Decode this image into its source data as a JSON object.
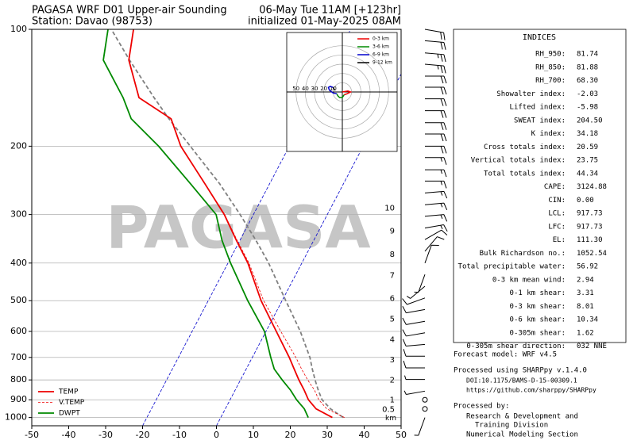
{
  "chart_data": {
    "type": "skewt",
    "title": "PAGASA WRF D01 Upper-air Sounding",
    "subtitle": "Station: Davao (98753)",
    "valid_time": "06-May Tue 11AM [+123hr]",
    "init_time": "initialized 01-May-2025 08AM",
    "watermark": "PAGASA",
    "log_y": true,
    "xlim": [
      -50,
      50
    ],
    "ylim": [
      1050,
      100
    ],
    "xticks": [
      -50,
      -40,
      -30,
      -20,
      -10,
      0,
      10,
      20,
      30,
      40,
      50
    ],
    "yticks": [
      100,
      200,
      300,
      400,
      500,
      600,
      700,
      800,
      900,
      1000
    ],
    "grid": true,
    "legend": "lower left",
    "isotherms": {
      "color": "#0000cc",
      "values": [
        -20,
        0
      ]
    },
    "pressure": [
      1000,
      950,
      900,
      850,
      800,
      750,
      700,
      600,
      500,
      400,
      350,
      300,
      250,
      200,
      170,
      150,
      120,
      100
    ],
    "series": [
      {
        "name": "TEMP",
        "color": "#ee0000",
        "linestyle": "solid",
        "values": [
          30.2,
          24.6,
          21.2,
          18.7,
          15.8,
          13.0,
          10.0,
          2.8,
          -5.7,
          -14.6,
          -20.9,
          -27.9,
          -37.5,
          -49.4,
          -55.9,
          -67.6,
          -75.7,
          -78.8
        ]
      },
      {
        "name": "V.TEMP",
        "color": "#ee0000",
        "linestyle": "dashed",
        "values": [
          33.5,
          27.5,
          24.0,
          21.5,
          18.2,
          15.0,
          11.8,
          4.0,
          -5.0,
          -14.3,
          -20.7,
          -27.8,
          -37.5,
          -49.4,
          -55.9,
          -67.6,
          -75.7,
          -78.8
        ]
      },
      {
        "name": "DWPT",
        "color": "#008a00",
        "linestyle": "solid",
        "values": [
          23.7,
          21.4,
          18.0,
          15.0,
          11.3,
          7.6,
          5.0,
          -0.4,
          -9.3,
          -19.3,
          -24.8,
          -30.1,
          -41.4,
          -55.4,
          -66.7,
          -71.9,
          -82.6,
          -85.7
        ]
      }
    ],
    "parcel": {
      "color": "#808080",
      "values": [
        33.2,
        28.5,
        24.9,
        22.5,
        20.2,
        17.9,
        15.6,
        9.3,
        1.0,
        -9.0,
        -15.6,
        -23.6,
        -33.5,
        -46.8,
        -56.5,
        -63.5,
        -75.5,
        -84.8
      ]
    },
    "heights": {
      "unit": "km",
      "values": [
        10,
        9,
        8,
        7,
        6,
        5,
        4,
        3,
        2,
        1,
        0.5
      ],
      "pressure": [
        289,
        331,
        380,
        431,
        494,
        558,
        631,
        710,
        802,
        902,
        954
      ]
    },
    "wind": {
      "pressure": [
        100,
        107,
        115,
        123,
        132,
        141,
        151,
        162,
        174,
        186,
        200,
        214,
        230,
        246,
        264,
        283,
        303,
        325,
        348,
        373,
        400,
        428,
        459,
        492,
        527,
        565,
        605,
        648,
        695,
        745,
        798,
        855,
        900,
        950,
        1000
      ],
      "direction": [
        100,
        95,
        95,
        95,
        90,
        90,
        90,
        90,
        90,
        90,
        90,
        90,
        90,
        90,
        85,
        85,
        85,
        80,
        60,
        40,
        20,
        200,
        230,
        250,
        260,
        260,
        260,
        265,
        270,
        270,
        270,
        260,
        0,
        0,
        200
      ],
      "speed": [
        20,
        20,
        25,
        25,
        20,
        20,
        20,
        20,
        20,
        20,
        20,
        15,
        15,
        15,
        15,
        15,
        15,
        15,
        10,
        10,
        10,
        5,
        5,
        10,
        10,
        10,
        10,
        10,
        10,
        10,
        5,
        5,
        0,
        0,
        5
      ]
    },
    "hodograph": {
      "lim": 60,
      "rings": [
        50,
        40,
        30,
        20,
        10
      ],
      "segments": [
        {
          "name": "0-3 km",
          "color": "#ee0000",
          "u": [
            0,
            6,
            9,
            5,
            2
          ],
          "v": [
            0,
            1,
            0,
            -2,
            -3
          ]
        },
        {
          "name": "3-6 km",
          "color": "#008a00",
          "u": [
            2,
            0,
            -3,
            -5,
            -6
          ],
          "v": [
            -3,
            -6,
            -6,
            -4,
            -2
          ]
        },
        {
          "name": "6-9 km",
          "color": "#0000cc",
          "u": [
            -6,
            -10,
            -14,
            -15,
            -13,
            -10
          ],
          "v": [
            -2,
            -1,
            2,
            5,
            6,
            5
          ]
        },
        {
          "name": "9-12 km",
          "color": "#000000",
          "u": [
            -10,
            -9,
            -8
          ],
          "v": [
            5,
            3,
            2
          ]
        }
      ]
    }
  },
  "indices": {
    "title": "INDICES",
    "rows": [
      {
        "label": "RH_950:",
        "value": "81.74"
      },
      {
        "label": "RH_850:",
        "value": "81.88"
      },
      {
        "label": "RH_700:",
        "value": "68.30"
      },
      {
        "label": "Showalter index:",
        "value": "-2.03"
      },
      {
        "label": "Lifted index:",
        "value": "-5.98"
      },
      {
        "label": "SWEAT index:",
        "value": "204.50"
      },
      {
        "label": "K index:",
        "value": "34.18"
      },
      {
        "label": "Cross totals index:",
        "value": "20.59"
      },
      {
        "label": "Vertical totals index:",
        "value": "23.75"
      },
      {
        "label": "Total totals index:",
        "value": "44.34"
      },
      {
        "label": "CAPE:",
        "value": "3124.88"
      },
      {
        "label": "CIN:",
        "value": "0.00"
      },
      {
        "label": "LCL:",
        "value": "917.73"
      },
      {
        "label": "LFC:",
        "value": "917.73"
      },
      {
        "label": "EL:",
        "value": "111.30"
      },
      {
        "label": "Bulk Richardson no.:",
        "value": "1052.54"
      },
      {
        "label": "Total precipitable water:",
        "value": "56.92"
      },
      {
        "label": "0-3 km mean wind:",
        "value": "2.94"
      },
      {
        "label": "0-1 km shear:",
        "value": "3.31"
      },
      {
        "label": "0-3 km shear:",
        "value": "8.01"
      },
      {
        "label": "0-6 km shear:",
        "value": "10.34"
      },
      {
        "label": "0-305m shear:",
        "value": "1.62"
      },
      {
        "label": "0-305m shear direction:",
        "value": "032 NNE"
      }
    ]
  },
  "footer": [
    "Forecast model: WRF v4.5",
    "Processed using SHARPpy v.1.4.0",
    "DOI:10.1175/BAMS-D-15-00309.1",
    "https://github.com/sharppy/SHARPpy",
    "Processed by:",
    "Research & Development and",
    "Training Division",
    "Numerical Modeling Section"
  ]
}
